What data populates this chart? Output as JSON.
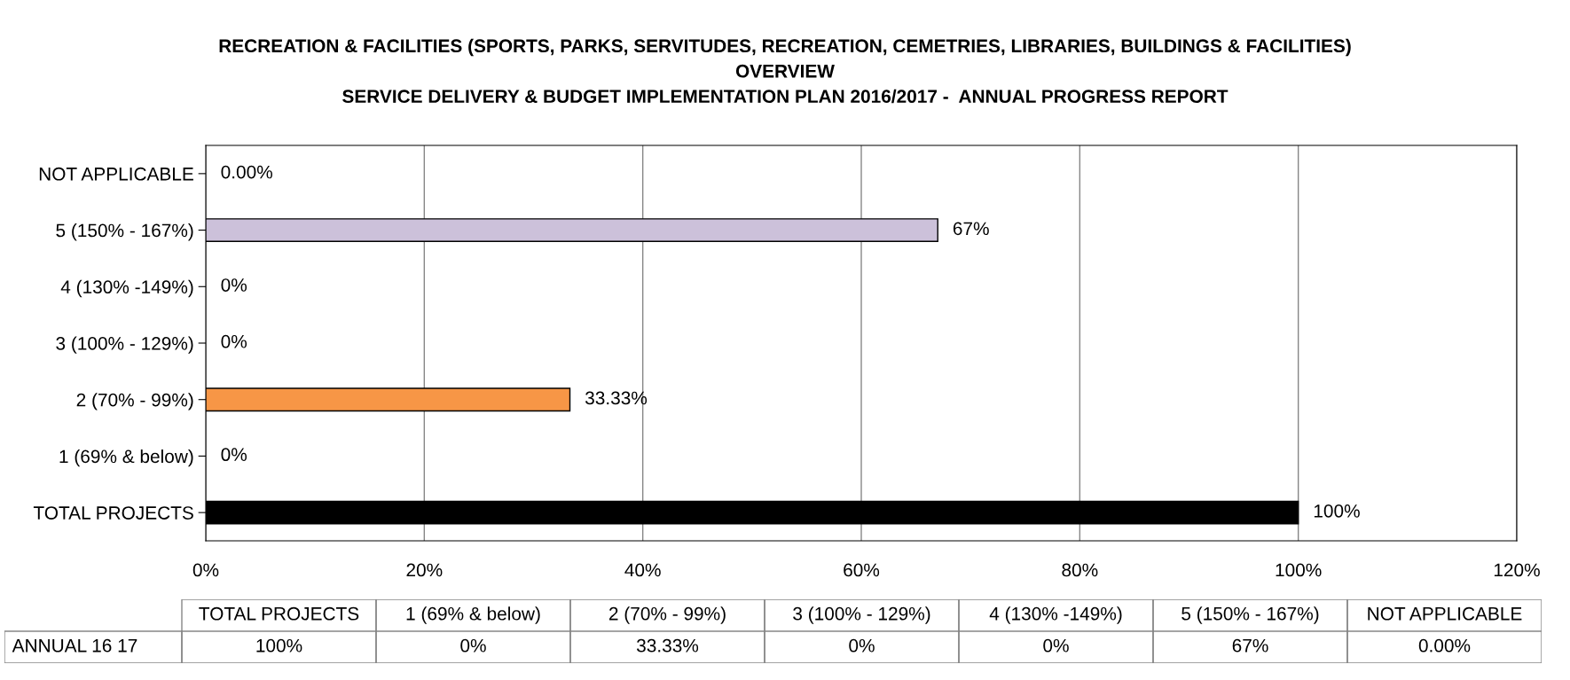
{
  "chart_data": {
    "type": "bar",
    "orientation": "horizontal",
    "title": "RECREATION & FACILITIES (SPORTS, PARKS, SERVITUDES, RECREATION, CEMETRIES, LIBRARIES, BUILDINGS & FACILITIES)\nOVERVIEW\nSERVICE DELIVERY & BUDGET IMPLEMENTATION PLAN 2016/2017 -  ANNUAL PROGRESS REPORT",
    "categories": [
      "NOT APPLICABLE",
      "5 (150% - 167%)",
      "4 (130% -149%)",
      "3 (100% - 129%)",
      "2 (70% - 99%)",
      "1 (69% & below)",
      "TOTAL PROJECTS"
    ],
    "series": [
      {
        "name": "ANNUAL 16 17",
        "values": [
          0,
          67,
          0,
          0,
          33.33,
          0,
          100
        ],
        "colors": [
          "#ccc1da",
          "#ccc1da",
          "#ccc1da",
          "#ccc1da",
          "#f79646",
          "#f79646",
          "#000000"
        ],
        "value_labels": [
          "0.00%",
          "67%",
          "0%",
          "0%",
          "33.33%",
          "0%",
          "100%"
        ]
      }
    ],
    "xlim": [
      0,
      120
    ],
    "xticks": [
      {
        "value": 0,
        "label": "0%"
      },
      {
        "value": 20,
        "label": "20%"
      },
      {
        "value": 40,
        "label": "40%"
      },
      {
        "value": 60,
        "label": "60%"
      },
      {
        "value": 80,
        "label": "80%"
      },
      {
        "value": 100,
        "label": "100%"
      },
      {
        "value": 120,
        "label": "120%"
      }
    ],
    "grid": "x"
  }
}
